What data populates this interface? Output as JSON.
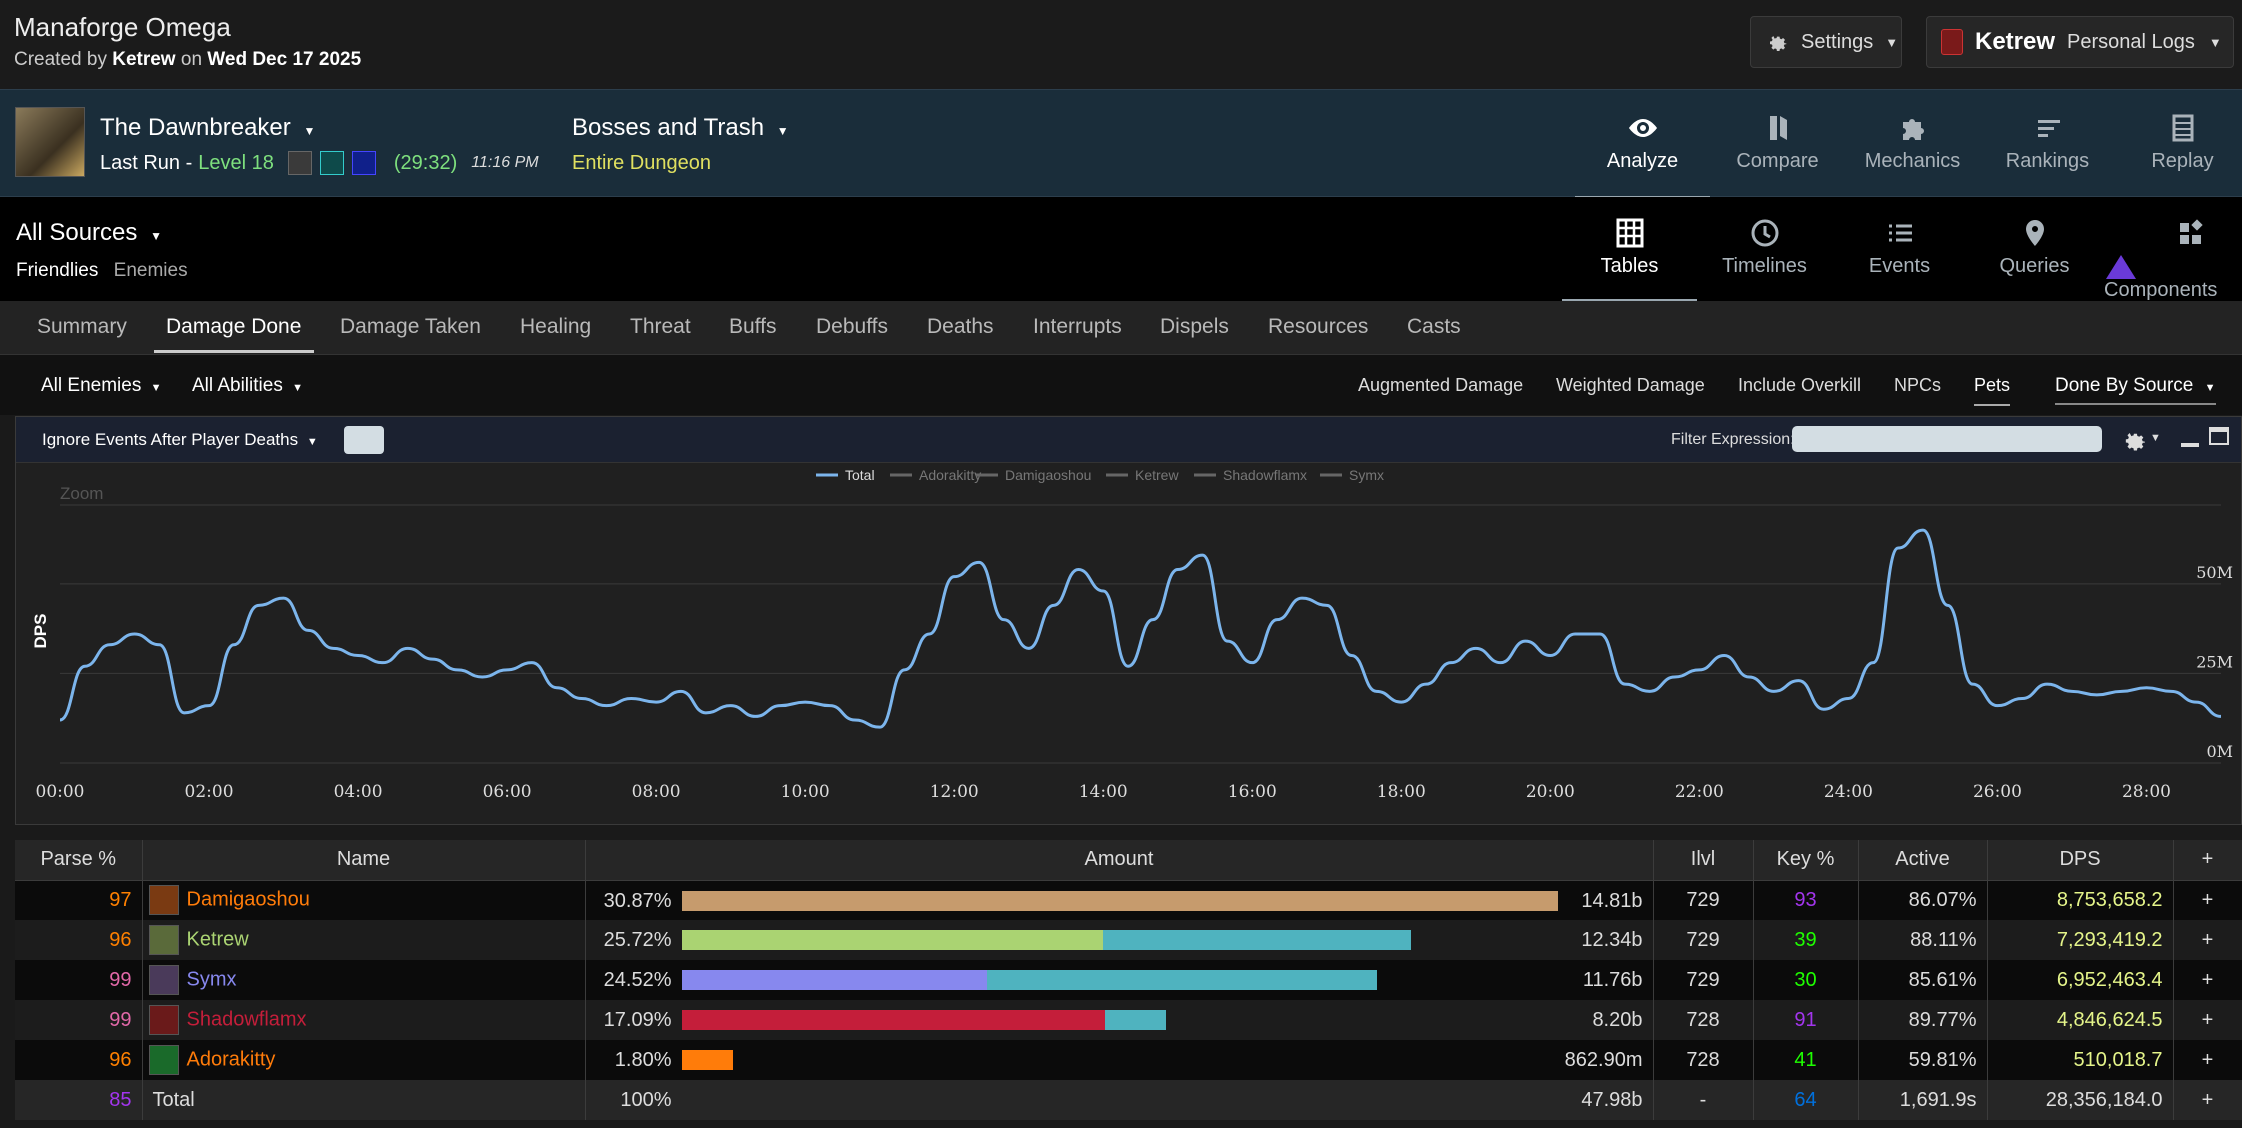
{
  "header": {
    "title": "Manaforge Omega",
    "created_by_prefix": "Created by",
    "author": "Ketrew",
    "on_word": "on",
    "date": "Wed Dec 17 2025",
    "settings_label": "Settings",
    "user_name": "Ketrew",
    "personal_logs_label": "Personal Logs"
  },
  "report": {
    "dungeon": "The Dawnbreaker",
    "last_run_label": "Last Run -",
    "level": "Level 18",
    "duration": "(29:32)",
    "time": "11:16 PM",
    "fight_filter": "Bosses and Trash",
    "fight_sub": "Entire Dungeon"
  },
  "view_nav": [
    {
      "label": "Analyze",
      "icon": "eye-icon",
      "active": true
    },
    {
      "label": "Compare",
      "icon": "compare-icon",
      "active": false
    },
    {
      "label": "Mechanics",
      "icon": "puzzle-icon",
      "active": false
    },
    {
      "label": "Rankings",
      "icon": "rankings-icon",
      "active": false
    },
    {
      "label": "Replay",
      "icon": "replay-icon",
      "active": false
    }
  ],
  "sources": {
    "title": "All Sources",
    "friendlies": "Friendlies",
    "enemies": "Enemies"
  },
  "mode_nav": [
    {
      "label": "Tables",
      "icon": "grid-icon",
      "active": true
    },
    {
      "label": "Timelines",
      "icon": "clock-icon",
      "active": false
    },
    {
      "label": "Events",
      "icon": "list-icon",
      "active": false
    },
    {
      "label": "Queries",
      "icon": "pin-icon",
      "active": false
    },
    {
      "label": "Components",
      "icon": "components-icon",
      "active": false
    }
  ],
  "tabs": [
    "Summary",
    "Damage Done",
    "Damage Taken",
    "Healing",
    "Threat",
    "Buffs",
    "Debuffs",
    "Deaths",
    "Interrupts",
    "Dispels",
    "Resources",
    "Casts"
  ],
  "active_tab": "Damage Done",
  "filters": {
    "enemies": "All Enemies",
    "abilities": "All Abilities",
    "augmented": "Augmented Damage",
    "weighted": "Weighted Damage",
    "overkill": "Include Overkill",
    "npcs": "NPCs",
    "pets": "Pets",
    "done_by": "Done By Source"
  },
  "chart_bar": {
    "ignore_events": "Ignore Events After Player Deaths",
    "filter_label": "Filter Expression:",
    "filter_value": ""
  },
  "chart_data": {
    "type": "line",
    "zoom_label": "Zoom",
    "ylabel": "DPS",
    "ylim": [
      0,
      72000000
    ],
    "y_ticks": [
      "0M",
      "25M",
      "50M"
    ],
    "x_ticks": [
      "00:00",
      "02:00",
      "04:00",
      "06:00",
      "08:00",
      "10:00",
      "12:00",
      "14:00",
      "16:00",
      "18:00",
      "20:00",
      "22:00",
      "24:00",
      "26:00",
      "28:00"
    ],
    "legend": [
      "Total",
      "Adorakitty",
      "Damigaoshou",
      "Ketrew",
      "Shadowflamx",
      "Symx"
    ],
    "series": [
      {
        "name": "Total",
        "color": "#7cb5ec",
        "x_seconds": [
          0,
          20,
          40,
          60,
          80,
          100,
          120,
          140,
          160,
          180,
          200,
          220,
          240,
          260,
          280,
          300,
          320,
          340,
          360,
          380,
          400,
          420,
          440,
          460,
          480,
          500,
          520,
          540,
          560,
          580,
          600,
          620,
          640,
          660,
          680,
          700,
          720,
          740,
          760,
          780,
          800,
          820,
          840,
          860,
          880,
          900,
          920,
          940,
          960,
          980,
          1000,
          1020,
          1040,
          1060,
          1080,
          1100,
          1120,
          1140,
          1160,
          1180,
          1200,
          1220,
          1240,
          1260,
          1280,
          1300,
          1320,
          1340,
          1360,
          1380,
          1400,
          1420,
          1440,
          1460,
          1480,
          1500,
          1520,
          1540,
          1560,
          1580,
          1600,
          1620,
          1640,
          1660,
          1680,
          1700,
          1720,
          1740
        ],
        "values": [
          12,
          27,
          33,
          36,
          33,
          14,
          16,
          33,
          44,
          46,
          37,
          32,
          30,
          28,
          32,
          29,
          26,
          24,
          26,
          28,
          21,
          18,
          16,
          18,
          17,
          20,
          14,
          16,
          13,
          16,
          17,
          16,
          12,
          10,
          26,
          36,
          52,
          56,
          40,
          32,
          44,
          54,
          48,
          27,
          40,
          54,
          58,
          34,
          28,
          40,
          46,
          44,
          30,
          20,
          17,
          22,
          28,
          32,
          28,
          34,
          30,
          36,
          36,
          22,
          20,
          24,
          26,
          30,
          24,
          20,
          23,
          15,
          18,
          28,
          60,
          65,
          44,
          22,
          16,
          18,
          22,
          20,
          19,
          20,
          21,
          20,
          17,
          13
        ]
      }
    ]
  },
  "table": {
    "headers": [
      "Parse %",
      "Name",
      "Amount",
      "Ilvl",
      "Key %",
      "Active",
      "DPS",
      "+"
    ],
    "rows": [
      {
        "parse": "97",
        "parse_color": "#ff8000",
        "name": "Damigaoshou",
        "name_color": "#ff7c0a",
        "icon_bg": "#7a3a12",
        "pct": "30.87%",
        "pct_value": 30.87,
        "bar_own": 1.0,
        "bar_pet": 0.0,
        "own_color": "#c69b6d",
        "amount": "14.81b",
        "ilvl": "729",
        "key": "93",
        "key_color": "#a335ee",
        "active": "86.07%",
        "dps": "8,753,658.2"
      },
      {
        "parse": "96",
        "parse_color": "#ff8000",
        "name": "Ketrew",
        "name_color": "#aad372",
        "icon_bg": "#5a6a3a",
        "pct": "25.72%",
        "pct_value": 25.72,
        "bar_own": 0.481,
        "bar_pet": 0.352,
        "own_color": "#aad372",
        "amount": "12.34b",
        "ilvl": "729",
        "key": "39",
        "key_color": "#1eff00",
        "active": "88.11%",
        "dps": "7,293,419.2"
      },
      {
        "parse": "99",
        "parse_color": "#e268a8",
        "name": "Symx",
        "name_color": "#8788ee",
        "icon_bg": "#4a3a5a",
        "pct": "24.52%",
        "pct_value": 24.52,
        "bar_own": 0.349,
        "bar_pet": 0.445,
        "own_color": "#8788ee",
        "amount": "11.76b",
        "ilvl": "729",
        "key": "30",
        "key_color": "#1eff00",
        "active": "85.61%",
        "dps": "6,952,463.4"
      },
      {
        "parse": "99",
        "parse_color": "#e268a8",
        "name": "Shadowflamx",
        "name_color": "#c41e3a",
        "icon_bg": "#6a1a1a",
        "pct": "17.09%",
        "pct_value": 17.09,
        "bar_own": 0.483,
        "bar_pet": 0.07,
        "own_color": "#c41e3a",
        "amount": "8.20b",
        "ilvl": "728",
        "key": "91",
        "key_color": "#a335ee",
        "active": "89.77%",
        "dps": "4,846,624.5"
      },
      {
        "parse": "96",
        "parse_color": "#ff8000",
        "name": "Adorakitty",
        "name_color": "#ff7c0a",
        "icon_bg": "#1a6a2a",
        "pct": "1.80%",
        "pct_value": 1.8,
        "bar_own": 0.058,
        "bar_pet": 0.0,
        "own_color": "#ff7c0a",
        "amount": "862.90m",
        "ilvl": "728",
        "key": "41",
        "key_color": "#1eff00",
        "active": "59.81%",
        "dps": "510,018.7"
      }
    ],
    "pet_color": "#4fb3bf",
    "total": {
      "parse": "85",
      "parse_color": "#a335ee",
      "name": "Total",
      "pct": "100%",
      "amount": "47.98b",
      "ilvl": "-",
      "key": "64",
      "key_color": "#0070dd",
      "active": "1,691.9s",
      "dps": "28,356,184.0"
    }
  }
}
